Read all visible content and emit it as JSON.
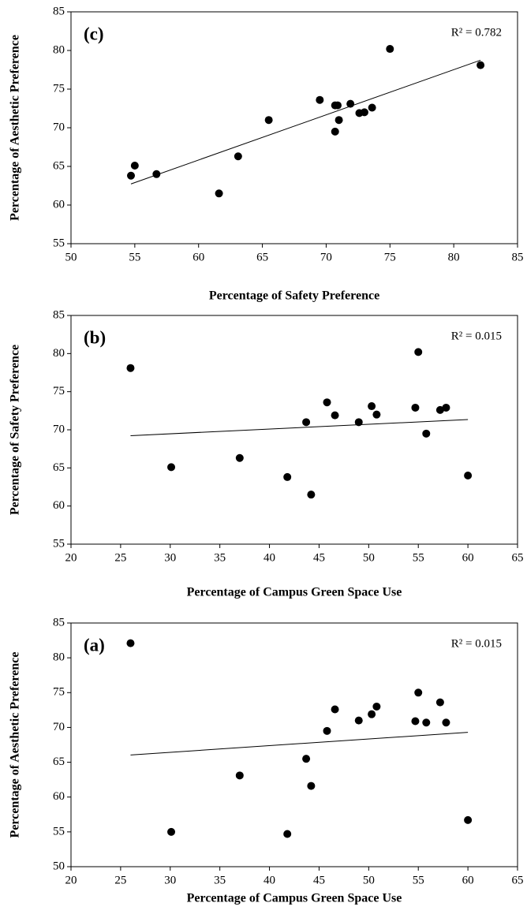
{
  "chart_data": [
    {
      "type": "scatter",
      "panel_label": "(c)",
      "annotation": "R² = 0.782",
      "x_label": "Percentage of Safety Preference",
      "y_label": "Percentage of Aesthetic Preference",
      "xlim": [
        50,
        85
      ],
      "xticks": [
        50,
        55,
        60,
        65,
        70,
        75,
        80,
        85
      ],
      "ylim": [
        55,
        85
      ],
      "yticks": [
        55,
        60,
        65,
        70,
        75,
        80,
        85
      ],
      "trendline": true,
      "series": [
        {
          "color": "#000000",
          "x": [
            82.1,
            55,
            63.1,
            54.7,
            65.5,
            61.6,
            69.5,
            72.6,
            71,
            71.9,
            73,
            70.9,
            75,
            70.7,
            73.6,
            70.7,
            56.7
          ],
          "values": [
            78.1,
            65.1,
            66.3,
            63.8,
            71,
            61.5,
            73.6,
            71.9,
            71,
            73.1,
            72,
            72.9,
            80.2,
            69.5,
            72.6,
            72.9,
            64
          ]
        }
      ]
    },
    {
      "type": "scatter",
      "panel_label": "(b)",
      "annotation": "R² = 0.015",
      "x_label": "Percentage of Campus Green Space Use",
      "y_label": "Percentage of Safety Preference",
      "xlim": [
        20,
        65
      ],
      "xticks": [
        20,
        25,
        30,
        35,
        40,
        45,
        50,
        55,
        60,
        65
      ],
      "ylim": [
        55,
        85
      ],
      "yticks": [
        55,
        60,
        65,
        70,
        75,
        80,
        85
      ],
      "trendline": true,
      "series": [
        {
          "color": "#000000",
          "x": [
            26,
            30.1,
            37,
            41.8,
            43.7,
            44.2,
            45.8,
            46.6,
            49,
            50.3,
            50.8,
            54.7,
            55,
            55.8,
            57.2,
            57.8,
            60
          ],
          "values": [
            78.1,
            65.1,
            66.3,
            63.8,
            71,
            61.5,
            73.6,
            71.9,
            71,
            73.1,
            72,
            72.9,
            80.2,
            69.5,
            72.6,
            72.9,
            64
          ]
        }
      ]
    },
    {
      "type": "scatter",
      "panel_label": "(a)",
      "annotation": "R² = 0.015",
      "x_label": "Percentage of Campus Green Space Use",
      "y_label": "Percentage of Aesthetic Preference",
      "xlim": [
        20,
        65
      ],
      "xticks": [
        20,
        25,
        30,
        35,
        40,
        45,
        50,
        55,
        60,
        65
      ],
      "ylim": [
        50,
        85
      ],
      "yticks": [
        50,
        55,
        60,
        65,
        70,
        75,
        80,
        85
      ],
      "trendline": true,
      "series": [
        {
          "color": "#000000",
          "x": [
            26,
            30.1,
            37,
            41.8,
            43.7,
            44.2,
            45.8,
            46.6,
            49,
            50.3,
            50.8,
            54.7,
            55,
            55.8,
            57.2,
            57.8,
            60
          ],
          "values": [
            82.1,
            55,
            63.1,
            54.7,
            65.5,
            61.6,
            69.5,
            72.6,
            71,
            71.9,
            73,
            70.9,
            75,
            70.7,
            73.6,
            70.7,
            56.7
          ]
        }
      ]
    }
  ]
}
